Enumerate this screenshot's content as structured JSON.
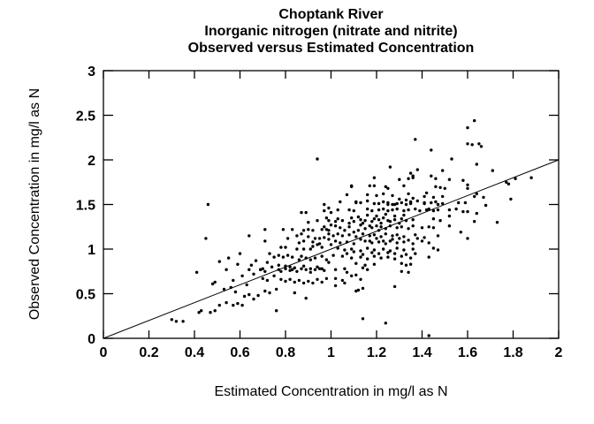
{
  "page": {
    "background": "#ffffff",
    "foreground": "#000000"
  },
  "chart_data": {
    "type": "scatter",
    "title_lines": [
      "Choptank River",
      "Inorganic nitrogen (nitrate and nitrite)",
      "Observed versus Estimated Concentration"
    ],
    "xlabel": "Estimated Concentration in mg/l as N",
    "ylabel": "Observed Concentration in mg/l as N",
    "xlim": [
      0,
      2
    ],
    "ylim": [
      0,
      3
    ],
    "x_ticks": [
      0,
      0.2,
      0.4,
      0.6,
      0.8,
      1,
      1.2,
      1.4,
      1.6,
      1.8,
      2
    ],
    "x_tick_labels": [
      "0",
      "0.2",
      "0.4",
      "0.6",
      "0.8",
      "1",
      "1.2",
      "1.4",
      "1.6",
      "1.8",
      "2"
    ],
    "y_ticks": [
      0,
      0.5,
      1,
      1.5,
      2,
      2.5,
      3
    ],
    "y_tick_labels": [
      "0",
      "0.5",
      "1",
      "1.5",
      "2",
      "2.5",
      "3"
    ],
    "grid": false,
    "legend": null,
    "axis_color": "#000000",
    "marker_color": "#000000",
    "marker_shape": "dot",
    "marker_radius": 1.7,
    "reference_line": {
      "type": "identity",
      "from": [
        0,
        0
      ],
      "to": [
        2,
        2
      ]
    },
    "points": [
      [
        0.46,
        1.5
      ],
      [
        0.45,
        1.12
      ],
      [
        0.41,
        0.74
      ],
      [
        0.48,
        0.61
      ],
      [
        0.49,
        0.63
      ],
      [
        0.42,
        0.29
      ],
      [
        0.43,
        0.31
      ],
      [
        0.47,
        0.29
      ],
      [
        0.49,
        0.31
      ],
      [
        0.32,
        0.19
      ],
      [
        0.35,
        0.19
      ],
      [
        0.3,
        0.21
      ],
      [
        0.51,
        0.86
      ],
      [
        0.59,
        0.83
      ],
      [
        0.65,
        0.82
      ],
      [
        0.67,
        0.87
      ],
      [
        0.64,
        1.15
      ],
      [
        0.7,
        0.78
      ],
      [
        0.54,
        0.77
      ],
      [
        0.57,
        0.65
      ],
      [
        0.53,
        0.55
      ],
      [
        0.56,
        0.57
      ],
      [
        0.61,
        0.7
      ],
      [
        0.64,
        0.77
      ],
      [
        0.66,
        0.72
      ],
      [
        0.69,
        0.77
      ],
      [
        0.62,
        0.47
      ],
      [
        0.64,
        0.49
      ],
      [
        0.66,
        0.44
      ],
      [
        0.68,
        0.48
      ],
      [
        0.54,
        0.4
      ],
      [
        0.57,
        0.37
      ],
      [
        0.59,
        0.39
      ],
      [
        0.61,
        0.37
      ],
      [
        0.51,
        0.37
      ],
      [
        0.55,
        0.9
      ],
      [
        0.6,
        0.95
      ],
      [
        0.63,
        0.6
      ],
      [
        0.58,
        0.52
      ],
      [
        0.87,
        1.41
      ],
      [
        0.89,
        1.41
      ],
      [
        0.97,
        1.43
      ],
      [
        0.9,
        1.3
      ],
      [
        0.94,
        1.32
      ],
      [
        0.99,
        1.32
      ],
      [
        0.71,
        1.22
      ],
      [
        0.79,
        1.22
      ],
      [
        0.83,
        1.22
      ],
      [
        0.88,
        1.21
      ],
      [
        0.96,
        1.22
      ],
      [
        0.98,
        1.22
      ],
      [
        0.99,
        1.21
      ],
      [
        0.71,
        1.09
      ],
      [
        0.81,
        1.12
      ],
      [
        0.9,
        1.14
      ],
      [
        0.93,
        1.12
      ],
      [
        0.95,
        1.12
      ],
      [
        0.97,
        1.13
      ],
      [
        0.99,
        1.11
      ],
      [
        0.78,
        1.02
      ],
      [
        0.8,
        1.02
      ],
      [
        0.85,
        1.0
      ],
      [
        0.88,
        1.0
      ],
      [
        0.91,
        1.0
      ],
      [
        0.92,
        1.03
      ],
      [
        0.94,
        1.05
      ],
      [
        0.73,
        0.95
      ],
      [
        0.75,
        0.91
      ],
      [
        0.77,
        0.93
      ],
      [
        0.79,
        0.91
      ],
      [
        0.81,
        0.93
      ],
      [
        0.83,
        0.91
      ],
      [
        0.86,
        0.88
      ],
      [
        0.87,
        0.92
      ],
      [
        0.89,
        0.9
      ],
      [
        0.91,
        0.88
      ],
      [
        0.93,
        0.9
      ],
      [
        0.96,
        0.92
      ],
      [
        0.98,
        0.88
      ],
      [
        0.74,
        0.8
      ],
      [
        0.77,
        0.82
      ],
      [
        0.8,
        0.81
      ],
      [
        0.82,
        0.8
      ],
      [
        0.84,
        0.79
      ],
      [
        0.88,
        0.81
      ],
      [
        0.91,
        0.78
      ],
      [
        0.94,
        0.8
      ],
      [
        0.96,
        0.78
      ],
      [
        0.72,
        0.85
      ],
      [
        0.69,
        0.77
      ],
      [
        0.71,
        0.75
      ],
      [
        0.7,
        0.67
      ],
      [
        0.72,
        0.65
      ],
      [
        0.75,
        0.7
      ],
      [
        0.77,
        0.77
      ],
      [
        0.78,
        0.75
      ],
      [
        0.8,
        0.78
      ],
      [
        0.82,
        0.76
      ],
      [
        0.83,
        0.77
      ],
      [
        0.85,
        0.75
      ],
      [
        0.87,
        0.78
      ],
      [
        0.89,
        0.77
      ],
      [
        0.91,
        0.74
      ],
      [
        0.93,
        0.77
      ],
      [
        0.95,
        0.78
      ],
      [
        0.97,
        0.76
      ],
      [
        0.78,
        0.66
      ],
      [
        0.8,
        0.64
      ],
      [
        0.82,
        0.66
      ],
      [
        0.84,
        0.63
      ],
      [
        0.86,
        0.65
      ],
      [
        0.88,
        0.62
      ],
      [
        0.9,
        0.64
      ],
      [
        0.92,
        0.62
      ],
      [
        0.94,
        0.66
      ],
      [
        0.96,
        0.63
      ],
      [
        0.98,
        0.67
      ],
      [
        0.71,
        0.53
      ],
      [
        0.73,
        0.51
      ],
      [
        0.76,
        0.55
      ],
      [
        0.84,
        0.51
      ],
      [
        0.89,
        0.45
      ],
      [
        0.76,
        0.31
      ],
      [
        0.94,
        2.01
      ],
      [
        0.97,
        1.5
      ],
      [
        0.99,
        1.46
      ],
      [
        1.19,
        1.51
      ],
      [
        1.25,
        1.52
      ],
      [
        1.27,
        1.5
      ],
      [
        1.29,
        1.51
      ],
      [
        1.31,
        1.52
      ],
      [
        1.33,
        1.5
      ],
      [
        1.35,
        1.51
      ],
      [
        1.41,
        1.51
      ],
      [
        1.44,
        1.52
      ],
      [
        1.47,
        1.5
      ],
      [
        1.49,
        1.51
      ],
      [
        1.08,
        1.44
      ],
      [
        1.1,
        1.43
      ],
      [
        1.16,
        1.45
      ],
      [
        1.18,
        1.43
      ],
      [
        1.21,
        1.44
      ],
      [
        1.23,
        1.45
      ],
      [
        1.25,
        1.43
      ],
      [
        1.27,
        1.44
      ],
      [
        1.29,
        1.45
      ],
      [
        1.32,
        1.43
      ],
      [
        1.34,
        1.44
      ],
      [
        1.37,
        1.45
      ],
      [
        1.39,
        1.43
      ],
      [
        1.42,
        1.44
      ],
      [
        1.43,
        1.45
      ],
      [
        1.45,
        1.43
      ],
      [
        1.47,
        1.44
      ],
      [
        1.03,
        1.34
      ],
      [
        1.05,
        1.32
      ],
      [
        1.09,
        1.35
      ],
      [
        1.13,
        1.33
      ],
      [
        1.15,
        1.32
      ],
      [
        1.19,
        1.34
      ],
      [
        1.21,
        1.33
      ],
      [
        1.23,
        1.35
      ],
      [
        1.25,
        1.32
      ],
      [
        1.28,
        1.33
      ],
      [
        1.31,
        1.34
      ],
      [
        1.33,
        1.32
      ],
      [
        1.36,
        1.33
      ],
      [
        1.45,
        1.34
      ],
      [
        1.48,
        1.32
      ],
      [
        1.02,
        1.26
      ],
      [
        1.04,
        1.24
      ],
      [
        1.08,
        1.25
      ],
      [
        1.13,
        1.27
      ],
      [
        1.18,
        1.24
      ],
      [
        1.2,
        1.26
      ],
      [
        1.22,
        1.25
      ],
      [
        1.24,
        1.23
      ],
      [
        1.26,
        1.26
      ],
      [
        1.29,
        1.24
      ],
      [
        1.31,
        1.25
      ],
      [
        1.34,
        1.23
      ],
      [
        1.36,
        1.26
      ],
      [
        1.4,
        1.24
      ],
      [
        1.43,
        1.25
      ],
      [
        1.45,
        1.24
      ],
      [
        1.03,
        1.17
      ],
      [
        1.05,
        1.15
      ],
      [
        1.08,
        1.16
      ],
      [
        1.11,
        1.14
      ],
      [
        1.14,
        1.17
      ],
      [
        1.17,
        1.15
      ],
      [
        1.19,
        1.16
      ],
      [
        1.22,
        1.14
      ],
      [
        1.24,
        1.17
      ],
      [
        1.27,
        1.15
      ],
      [
        1.29,
        1.16
      ],
      [
        1.32,
        1.14
      ],
      [
        1.37,
        1.16
      ],
      [
        1.47,
        1.15
      ],
      [
        1.02,
        1.09
      ],
      [
        1.04,
        1.07
      ],
      [
        1.07,
        1.08
      ],
      [
        1.1,
        1.06
      ],
      [
        1.15,
        1.09
      ],
      [
        1.18,
        1.07
      ],
      [
        1.21,
        1.08
      ],
      [
        1.24,
        1.06
      ],
      [
        1.26,
        1.09
      ],
      [
        1.29,
        1.07
      ],
      [
        1.32,
        1.08
      ],
      [
        1.36,
        1.06
      ],
      [
        1.4,
        1.09
      ],
      [
        1.43,
        1.07
      ],
      [
        1.03,
        1.01
      ],
      [
        1.06,
        0.99
      ],
      [
        1.09,
        1.0
      ],
      [
        1.13,
        0.98
      ],
      [
        1.16,
        1.01
      ],
      [
        1.19,
        0.99
      ],
      [
        1.23,
        1.0
      ],
      [
        1.26,
        0.98
      ],
      [
        1.29,
        1.01
      ],
      [
        1.32,
        0.99
      ],
      [
        1.36,
        1.0
      ],
      [
        1.45,
        1.01
      ],
      [
        1.47,
        0.99
      ],
      [
        1.05,
        0.92
      ],
      [
        1.09,
        0.9
      ],
      [
        1.13,
        0.91
      ],
      [
        1.16,
        0.89
      ],
      [
        1.19,
        0.92
      ],
      [
        1.22,
        0.9
      ],
      [
        1.25,
        0.91
      ],
      [
        1.28,
        0.89
      ],
      [
        1.31,
        0.92
      ],
      [
        1.35,
        0.9
      ],
      [
        1.43,
        0.91
      ],
      [
        1.11,
        0.84
      ],
      [
        1.15,
        0.82
      ],
      [
        1.19,
        0.83
      ],
      [
        1.31,
        0.84
      ],
      [
        1.33,
        0.82
      ],
      [
        1.35,
        0.83
      ],
      [
        1.02,
        0.77
      ],
      [
        1.06,
        0.78
      ],
      [
        1.07,
        0.74
      ],
      [
        1.14,
        0.79
      ],
      [
        1.16,
        0.77
      ],
      [
        1.31,
        0.75
      ],
      [
        1.34,
        0.74
      ],
      [
        1.02,
        0.67
      ],
      [
        1.05,
        0.65
      ],
      [
        1.09,
        0.7
      ],
      [
        1.11,
        0.71
      ],
      [
        1.13,
        0.66
      ],
      [
        1.02,
        0.59
      ],
      [
        1.06,
        0.62
      ],
      [
        1.28,
        0.58
      ],
      [
        1.11,
        0.53
      ],
      [
        1.12,
        0.54
      ],
      [
        1.14,
        0.56
      ],
      [
        1.14,
        0.22
      ],
      [
        1.24,
        0.17
      ],
      [
        1.43,
        0.03
      ],
      [
        1.26,
        1.92
      ],
      [
        1.19,
        1.8
      ],
      [
        1.3,
        1.78
      ],
      [
        1.32,
        1.71
      ],
      [
        1.34,
        1.79
      ],
      [
        1.36,
        1.82
      ],
      [
        1.09,
        1.71
      ],
      [
        1.17,
        1.71
      ],
      [
        1.19,
        1.71
      ],
      [
        1.24,
        1.7
      ],
      [
        1.07,
        1.61
      ],
      [
        1.16,
        1.61
      ],
      [
        1.2,
        1.6
      ],
      [
        1.23,
        1.62
      ],
      [
        1.27,
        1.6
      ],
      [
        1.3,
        1.56
      ],
      [
        1.33,
        1.55
      ],
      [
        1.35,
        1.52
      ],
      [
        1.36,
        1.57
      ],
      [
        1.04,
        1.53
      ],
      [
        1.11,
        1.52
      ],
      [
        1.13,
        1.52
      ],
      [
        1.16,
        1.54
      ],
      [
        1.21,
        1.51
      ],
      [
        1.25,
        1.5
      ],
      [
        1.28,
        1.5
      ],
      [
        1.11,
        1.53
      ],
      [
        1.23,
        1.53
      ],
      [
        1.09,
        1.7
      ],
      [
        1.25,
        1.68
      ],
      [
        1.37,
        2.23
      ],
      [
        1.44,
        2.11
      ],
      [
        1.53,
        2.01
      ],
      [
        1.38,
        1.89
      ],
      [
        1.36,
        1.8
      ],
      [
        1.44,
        1.82
      ],
      [
        1.46,
        1.79
      ],
      [
        1.49,
        1.88
      ],
      [
        1.35,
        1.85
      ],
      [
        1.34,
        1.62
      ],
      [
        1.41,
        1.59
      ],
      [
        1.42,
        1.63
      ],
      [
        1.45,
        1.58
      ],
      [
        1.46,
        1.53
      ],
      [
        1.49,
        1.59
      ],
      [
        1.35,
        1.53
      ],
      [
        1.38,
        1.54
      ],
      [
        1.41,
        1.52
      ],
      [
        1.46,
        1.7
      ],
      [
        1.48,
        1.69
      ],
      [
        1.5,
        1.68
      ],
      [
        1.52,
        1.78
      ],
      [
        1.63,
        2.44
      ],
      [
        1.6,
        2.36
      ],
      [
        1.62,
        2.17
      ],
      [
        1.65,
        2.18
      ],
      [
        1.66,
        2.15
      ],
      [
        1.6,
        2.18
      ],
      [
        1.64,
        1.95
      ],
      [
        1.58,
        1.77
      ],
      [
        1.6,
        1.72
      ],
      [
        1.6,
        1.68
      ],
      [
        1.64,
        1.62
      ],
      [
        1.67,
        1.58
      ],
      [
        1.63,
        1.59
      ],
      [
        1.71,
        1.88
      ],
      [
        1.81,
        1.79
      ],
      [
        1.78,
        1.73
      ],
      [
        1.79,
        1.56
      ],
      [
        1.56,
        1.52
      ],
      [
        1.59,
        1.52
      ],
      [
        1.68,
        1.49
      ],
      [
        1.52,
        1.44
      ],
      [
        1.55,
        1.45
      ],
      [
        1.58,
        1.42
      ],
      [
        1.6,
        1.42
      ],
      [
        1.64,
        1.4
      ],
      [
        1.52,
        1.37
      ],
      [
        1.63,
        1.31
      ],
      [
        1.73,
        1.3
      ],
      [
        1.57,
        1.19
      ],
      [
        1.6,
        1.12
      ],
      [
        1.52,
        1.26
      ],
      [
        1.77,
        1.75
      ],
      [
        1.88,
        1.8
      ],
      [
        1.12,
        1.21
      ],
      [
        1.15,
        1.23
      ],
      [
        1.17,
        1.26
      ],
      [
        1.21,
        1.21
      ],
      [
        1.1,
        1.31
      ],
      [
        1.14,
        1.29
      ],
      [
        1.18,
        1.31
      ],
      [
        1.22,
        1.29
      ],
      [
        1.26,
        1.31
      ],
      [
        1.3,
        1.29
      ],
      [
        1.12,
        1.36
      ],
      [
        1.16,
        1.38
      ],
      [
        1.2,
        1.37
      ],
      [
        1.24,
        1.39
      ],
      [
        1.28,
        1.37
      ],
      [
        1.32,
        1.38
      ],
      [
        1.06,
        1.21
      ],
      [
        1.08,
        1.29
      ],
      [
        1.1,
        1.19
      ],
      [
        1.13,
        1.11
      ],
      [
        1.17,
        1.09
      ],
      [
        1.2,
        1.12
      ],
      [
        1.23,
        1.09
      ],
      [
        1.27,
        1.11
      ],
      [
        1.3,
        1.12
      ],
      [
        1.34,
        1.1
      ],
      [
        1.38,
        1.12
      ],
      [
        1.41,
        1.13
      ],
      [
        1.07,
        0.95
      ],
      [
        1.1,
        0.97
      ],
      [
        1.14,
        0.94
      ],
      [
        1.18,
        0.96
      ],
      [
        1.21,
        0.95
      ],
      [
        1.25,
        0.96
      ],
      [
        1.28,
        0.95
      ],
      [
        1.33,
        0.94
      ],
      [
        1.37,
        0.95
      ],
      [
        0.86,
        1.07
      ],
      [
        0.88,
        1.09
      ],
      [
        0.92,
        1.08
      ],
      [
        0.95,
        1.06
      ],
      [
        0.9,
        1.22
      ],
      [
        0.92,
        1.21
      ],
      [
        0.85,
        1.15
      ],
      [
        0.87,
        1.17
      ],
      [
        0.99,
        1.17
      ],
      [
        1.01,
        1.15
      ],
      [
        0.97,
        1.25
      ],
      [
        1.0,
        1.27
      ],
      [
        1.02,
        1.31
      ],
      [
        0.98,
        1.35
      ],
      [
        1.0,
        1.41
      ],
      [
        1.03,
        1.44
      ],
      [
        0.96,
        1.02
      ],
      [
        1.0,
        1.05
      ],
      [
        1.01,
        0.93
      ],
      [
        0.99,
        0.85
      ]
    ]
  }
}
